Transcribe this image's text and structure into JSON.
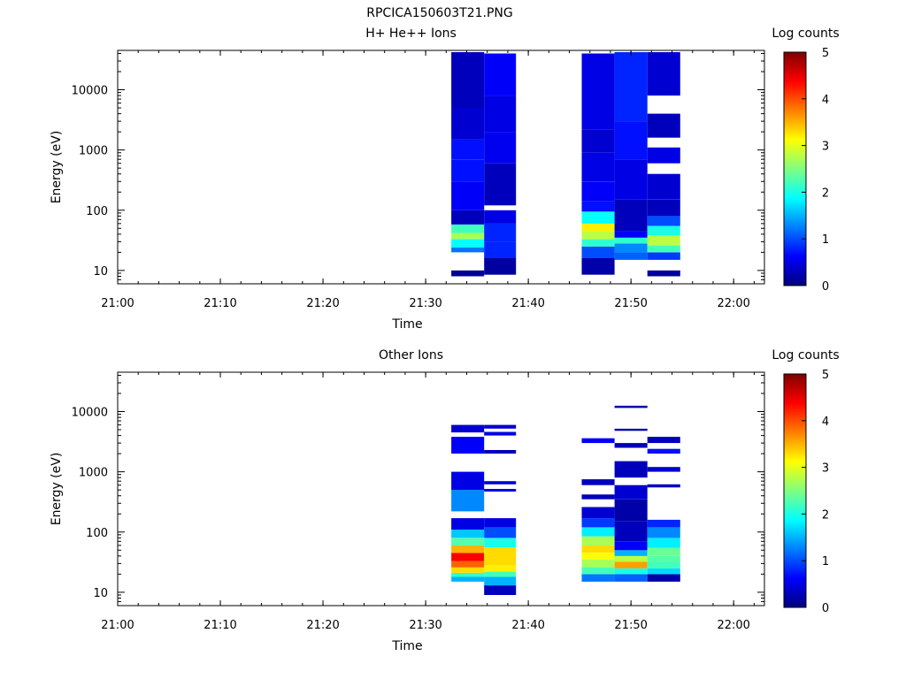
{
  "figure_title": "RPCICA150603T21.PNG",
  "colormap": [
    "#00007f",
    "#0000ff",
    "#007fff",
    "#00ffff",
    "#7fff7f",
    "#ffff00",
    "#ff7f00",
    "#ff0000",
    "#7f0000"
  ],
  "chart_data": [
    {
      "type": "heatmap",
      "title": "H+ He++ Ions",
      "xlabel": "Time",
      "ylabel": "Energy (eV)",
      "y_scale": "log",
      "ylim": [
        6,
        45000
      ],
      "xlim": [
        "21:00",
        "22:03"
      ],
      "x_ticks": [
        "21:00",
        "21:10",
        "21:20",
        "21:30",
        "21:40",
        "21:50",
        "22:00"
      ],
      "y_ticks": [
        "10",
        "100",
        "1000",
        "10000"
      ],
      "colorbar": {
        "label": "Log counts",
        "range": [
          0,
          5
        ],
        "ticks": [
          "0",
          "1",
          "2",
          "3",
          "4",
          "5"
        ]
      },
      "columns": [
        {
          "start": "21:32.5",
          "end": "21:35.7",
          "cells": [
            [
              8,
              10,
              0.1
            ],
            [
              20,
              24,
              1.2
            ],
            [
              24,
              33,
              1.9
            ],
            [
              33,
              42,
              2.7
            ],
            [
              42,
              58,
              2.2
            ],
            [
              58,
              100,
              0.3
            ],
            [
              100,
              300,
              0.6
            ],
            [
              300,
              700,
              0.7
            ],
            [
              700,
              1500,
              0.7
            ],
            [
              1500,
              5000,
              0.4
            ],
            [
              5000,
              42000,
              0.3
            ]
          ]
        },
        {
          "start": "21:35.7",
          "end": "21:38.8",
          "cells": [
            [
              8.5,
              16,
              0.15
            ],
            [
              16,
              30,
              0.8
            ],
            [
              30,
              60,
              0.8
            ],
            [
              60,
              100,
              0.5
            ],
            [
              120,
              600,
              0.3
            ],
            [
              600,
              2000,
              0.55
            ],
            [
              2000,
              8000,
              0.5
            ],
            [
              8000,
              40000,
              0.6
            ]
          ]
        },
        {
          "start": "21:45.2",
          "end": "21:48.4",
          "cells": [
            [
              8.5,
              16,
              0.2
            ],
            [
              16,
              25,
              1.0
            ],
            [
              25,
              33,
              2.1
            ],
            [
              33,
              45,
              2.8
            ],
            [
              45,
              60,
              3.2
            ],
            [
              60,
              95,
              1.9
            ],
            [
              95,
              140,
              0.7
            ],
            [
              140,
              300,
              0.6
            ],
            [
              300,
              900,
              0.5
            ],
            [
              900,
              2200,
              0.4
            ],
            [
              2200,
              40000,
              0.5
            ]
          ]
        },
        {
          "start": "21:48.4",
          "end": "21:51.6",
          "cells": [
            [
              15,
              20,
              1.1
            ],
            [
              20,
              28,
              1.3
            ],
            [
              28,
              35,
              2.1
            ],
            [
              35,
              45,
              0.6
            ],
            [
              45,
              150,
              0.3
            ],
            [
              150,
              700,
              0.5
            ],
            [
              700,
              3000,
              0.7
            ],
            [
              3000,
              42000,
              0.8
            ]
          ]
        },
        {
          "start": "21:51.6",
          "end": "21:54.8",
          "cells": [
            [
              8,
              10,
              0.15
            ],
            [
              15,
              20,
              0.9
            ],
            [
              20,
              26,
              2.2
            ],
            [
              26,
              38,
              2.8
            ],
            [
              38,
              55,
              2.0
            ],
            [
              55,
              80,
              1.0
            ],
            [
              80,
              150,
              0.3
            ],
            [
              150,
              400,
              0.4
            ],
            [
              600,
              1100,
              0.5
            ],
            [
              1600,
              4000,
              0.3
            ],
            [
              8000,
              42000,
              0.4
            ]
          ]
        }
      ]
    },
    {
      "type": "heatmap",
      "title": "Other Ions",
      "xlabel": "Time",
      "ylabel": "Energy (eV)",
      "y_scale": "log",
      "ylim": [
        6,
        45000
      ],
      "xlim": [
        "21:00",
        "22:03"
      ],
      "x_ticks": [
        "21:00",
        "21:10",
        "21:20",
        "21:30",
        "21:40",
        "21:50",
        "22:00"
      ],
      "y_ticks": [
        "10",
        "100",
        "1000",
        "10000"
      ],
      "colorbar": {
        "label": "Log counts",
        "range": [
          0,
          5
        ],
        "ticks": [
          "0",
          "1",
          "2",
          "3",
          "4",
          "5"
        ]
      },
      "columns": [
        {
          "start": "21:32.5",
          "end": "21:35.7",
          "cells": [
            [
              15,
              18,
              1.5
            ],
            [
              18,
              21,
              2.1
            ],
            [
              21,
              26,
              3.3
            ],
            [
              26,
              33,
              3.9
            ],
            [
              33,
              45,
              4.4
            ],
            [
              45,
              60,
              3.5
            ],
            [
              60,
              80,
              2.3
            ],
            [
              80,
              110,
              1.6
            ],
            [
              110,
              170,
              0.5
            ],
            [
              220,
              500,
              1.3
            ],
            [
              500,
              1000,
              0.5
            ],
            [
              2000,
              3800,
              0.6
            ],
            [
              4500,
              6000,
              0.4
            ]
          ]
        },
        {
          "start": "21:35.7",
          "end": "21:38.8",
          "cells": [
            [
              9,
              13,
              0.3
            ],
            [
              13,
              18,
              1.5
            ],
            [
              18,
              22,
              2.2
            ],
            [
              22,
              28,
              3.2
            ],
            [
              28,
              36,
              3.3
            ],
            [
              36,
              56,
              3.3
            ],
            [
              56,
              80,
              2.0
            ],
            [
              80,
              120,
              1.0
            ],
            [
              120,
              170,
              0.5
            ],
            [
              470,
              520,
              0.5
            ],
            [
              620,
              700,
              0.4
            ],
            [
              2000,
              2300,
              0.3
            ],
            [
              4000,
              4600,
              0.5
            ],
            [
              5200,
              6000,
              0.4
            ]
          ]
        },
        {
          "start": "21:45.2",
          "end": "21:48.4",
          "cells": [
            [
              15,
              20,
              1.2
            ],
            [
              20,
              26,
              2.2
            ],
            [
              26,
              35,
              2.7
            ],
            [
              35,
              46,
              3.1
            ],
            [
              46,
              60,
              3.3
            ],
            [
              60,
              85,
              2.7
            ],
            [
              85,
              120,
              1.8
            ],
            [
              120,
              170,
              0.9
            ],
            [
              170,
              260,
              0.4
            ],
            [
              350,
              420,
              0.3
            ],
            [
              600,
              750,
              0.3
            ],
            [
              3000,
              3600,
              0.6
            ]
          ]
        },
        {
          "start": "21:48.4",
          "end": "21:51.6",
          "cells": [
            [
              15,
              20,
              1.1
            ],
            [
              20,
              25,
              2.0
            ],
            [
              25,
              32,
              3.6
            ],
            [
              32,
              40,
              2.8
            ],
            [
              40,
              50,
              1.5
            ],
            [
              50,
              70,
              0.6
            ],
            [
              70,
              150,
              0.3
            ],
            [
              150,
              350,
              0.2
            ],
            [
              350,
              600,
              0.4
            ],
            [
              800,
              1500,
              0.3
            ],
            [
              2500,
              3000,
              0.3
            ],
            [
              4800,
              5200,
              0.2
            ],
            [
              11500,
              12500,
              0.2
            ]
          ]
        },
        {
          "start": "21:51.6",
          "end": "21:54.8",
          "cells": [
            [
              15,
              20,
              0.2
            ],
            [
              20,
              25,
              1.7
            ],
            [
              25,
              32,
              2.2
            ],
            [
              32,
              40,
              2.3
            ],
            [
              40,
              55,
              2.4
            ],
            [
              55,
              80,
              1.8
            ],
            [
              80,
              120,
              1.3
            ],
            [
              120,
              160,
              0.8
            ],
            [
              550,
              620,
              0.3
            ],
            [
              1000,
              1200,
              0.4
            ],
            [
              2000,
              2400,
              0.7
            ],
            [
              3000,
              3800,
              0.3
            ]
          ]
        }
      ]
    }
  ]
}
